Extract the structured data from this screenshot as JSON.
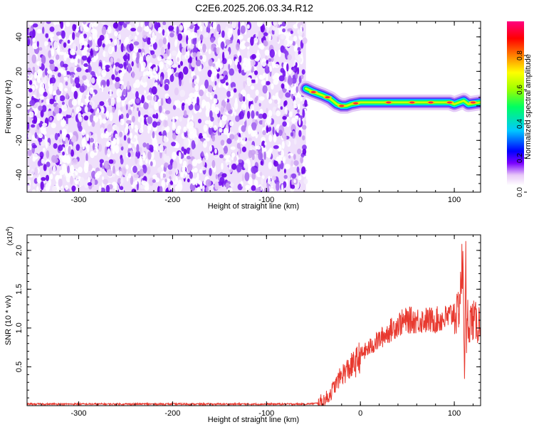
{
  "title": "C2E6.2025.206.03.34.R12",
  "chart_data": [
    {
      "type": "heatmap",
      "xlabel": "Height of straight line (km)",
      "ylabel": "Frequency (Hz)",
      "xlim": [
        -355,
        128
      ],
      "ylim": [
        -50,
        49
      ],
      "xticks": [
        -300,
        -200,
        -100,
        0,
        100
      ],
      "yticks": [
        -40,
        -20,
        0,
        20,
        40
      ],
      "xtick_labels": [
        "-300",
        "-200",
        "-100",
        "0",
        "100"
      ],
      "ytick_labels": [
        "-40",
        "-20",
        "0",
        "20",
        "40"
      ],
      "noise_region_x": [
        -355,
        -58
      ],
      "signal_ridge": {
        "x": [
          -58,
          -50,
          -40,
          -32,
          -25,
          -20,
          -15,
          -10,
          0,
          20,
          50,
          80,
          95,
          100,
          110,
          115,
          128
        ],
        "frequency": [
          10,
          8,
          6,
          4,
          1,
          0,
          0,
          1,
          2,
          2,
          2,
          2,
          2,
          1,
          3,
          1,
          2
        ]
      },
      "colorbar": {
        "label": "Normalized spectral amplitude",
        "range": [
          0,
          1
        ],
        "ticks": [
          0.0,
          0.2,
          0.4,
          0.6,
          0.8
        ],
        "tick_labels": [
          "0.0",
          "0.2",
          "0.4",
          "0.6",
          "0.8"
        ],
        "colors": [
          "#ffffff",
          "#ffffff",
          "#e8c8f8",
          "#7a00ff",
          "#0000ff",
          "#00c8ff",
          "#00ff60",
          "#9aff00",
          "#ffff00",
          "#ff8000",
          "#ff0000",
          "#ff0080"
        ]
      }
    },
    {
      "type": "line",
      "xlabel": "Height of straight line (km)",
      "ylabel": "SNR (10 * v/v)",
      "y_multiplier": "(x10",
      "y_multiplier_exp": "4",
      "y_multiplier_close": ")",
      "xlim": [
        -355,
        128
      ],
      "ylim": [
        0,
        2.2
      ],
      "xticks": [
        -300,
        -200,
        -100,
        0,
        100
      ],
      "yticks": [
        0.5,
        1.0,
        1.5,
        2.0
      ],
      "xtick_labels": [
        "-300",
        "-200",
        "-100",
        "0",
        "100"
      ],
      "ytick_labels": [
        "0.5",
        "1.0",
        "1.5",
        "2.0"
      ],
      "series": [
        {
          "color": "#e8392f",
          "x": [
            -355,
            -300,
            -200,
            -100,
            -60,
            -45,
            -40,
            -35,
            -30,
            -25,
            -20,
            -15,
            -10,
            -5,
            0,
            5,
            10,
            20,
            30,
            40,
            50,
            60,
            70,
            80,
            90,
            95,
            100,
            103,
            105,
            107,
            109,
            110,
            111,
            112,
            113,
            114,
            115,
            117,
            120,
            125,
            128
          ],
          "y": [
            0.02,
            0.02,
            0.02,
            0.02,
            0.02,
            0.03,
            0.05,
            0.1,
            0.2,
            0.3,
            0.4,
            0.45,
            0.5,
            0.55,
            0.65,
            0.7,
            0.75,
            0.85,
            0.95,
            1.05,
            1.1,
            1.1,
            1.1,
            1.1,
            1.12,
            1.15,
            1.2,
            1.15,
            1.3,
            1.6,
            1.8,
            1.1,
            0.3,
            2.15,
            0.6,
            1.2,
            1.05,
            1.1,
            1.1,
            1.05,
            1.1
          ]
        }
      ]
    }
  ]
}
